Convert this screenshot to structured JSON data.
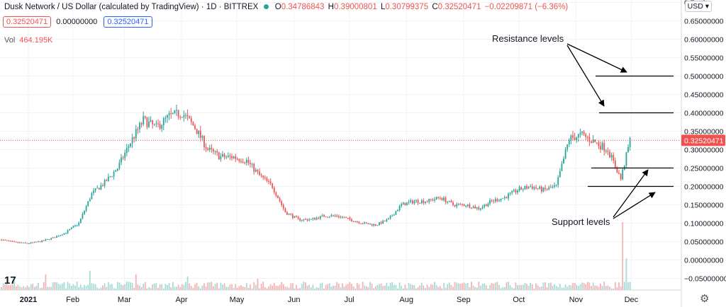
{
  "header": {
    "symbol_title": "Dusk Network / US Dollar (calculated by TradingView) · 1D · BITTREX",
    "ohlc": {
      "O": "0.34786843",
      "H": "0.39000801",
      "L": "0.30799375",
      "C": "0.32520471",
      "change": "−0.02209871 (−6.36%)"
    },
    "boxes": [
      "0.32520471",
      "0.00000000",
      "0.32520471"
    ],
    "volume_label": "Vol",
    "volume_value": "464.195K",
    "currency": "USD"
  },
  "branding": {
    "logo_text": "17",
    "settings_icon": "gear-icon"
  },
  "annotations": {
    "resistance": "Resistance levels",
    "support": "Support levels"
  },
  "colors": {
    "up": "#26a69a",
    "down": "#ef5350",
    "price_line": "#ef5350",
    "level_line": "#000000",
    "grid": "#f0f3fa"
  },
  "chart_data": {
    "type": "candlestick",
    "title": "Dusk Network / US Dollar (calculated by TradingView) · 1D · BITTREX",
    "ylim": [
      -0.07,
      0.7
    ],
    "y_ticks": [
      "0.7…0",
      "0.65000000",
      "0.60000000",
      "0.55000000",
      "0.50000000",
      "0.45000000",
      "0.40000000",
      "0.35000000",
      "0.30000000",
      "0.25000000",
      "0.20000000",
      "0.15000000",
      "0.10000000",
      "0.05000000",
      "0.00000000",
      "−0.05000000"
    ],
    "x_ticks": [
      "2021",
      "Feb",
      "Mar",
      "Apr",
      "May",
      "Jun",
      "Jul",
      "Aug",
      "Sep",
      "Oct",
      "Nov",
      "Dec"
    ],
    "last_price_label": "0.32520471",
    "last_price": 0.3252,
    "resistance_levels": [
      0.5,
      0.4
    ],
    "support_levels": [
      0.25,
      0.2
    ],
    "grid": true,
    "weekly_closes": {
      "x": [
        "2021-01-01",
        "2021-01-08",
        "2021-01-15",
        "2021-01-22",
        "2021-01-29",
        "2021-02-05",
        "2021-02-12",
        "2021-02-19",
        "2021-02-26",
        "2021-03-05",
        "2021-03-12",
        "2021-03-19",
        "2021-03-26",
        "2021-04-02",
        "2021-04-09",
        "2021-04-16",
        "2021-04-23",
        "2021-04-30",
        "2021-05-07",
        "2021-05-14",
        "2021-05-21",
        "2021-05-28",
        "2021-06-04",
        "2021-06-11",
        "2021-06-18",
        "2021-06-25",
        "2021-07-02",
        "2021-07-09",
        "2021-07-16",
        "2021-07-23",
        "2021-07-30",
        "2021-08-06",
        "2021-08-13",
        "2021-08-20",
        "2021-08-27",
        "2021-09-03",
        "2021-09-10",
        "2021-09-17",
        "2021-09-24",
        "2021-10-01",
        "2021-10-08",
        "2021-10-15",
        "2021-10-22",
        "2021-10-29",
        "2021-11-05",
        "2021-11-12",
        "2021-11-19",
        "2021-11-26",
        "2021-12-03",
        "2021-12-08"
      ],
      "close": [
        0.055,
        0.048,
        0.045,
        0.05,
        0.06,
        0.075,
        0.1,
        0.18,
        0.21,
        0.25,
        0.32,
        0.38,
        0.36,
        0.39,
        0.4,
        0.36,
        0.3,
        0.28,
        0.28,
        0.27,
        0.23,
        0.2,
        0.13,
        0.11,
        0.11,
        0.12,
        0.12,
        0.11,
        0.1,
        0.095,
        0.11,
        0.15,
        0.16,
        0.16,
        0.17,
        0.15,
        0.15,
        0.14,
        0.16,
        0.17,
        0.19,
        0.2,
        0.19,
        0.2,
        0.33,
        0.34,
        0.32,
        0.3,
        0.22,
        0.3252
      ]
    },
    "volume_bars": {
      "x": [
        "2021-01-08",
        "2021-01-25",
        "2021-02-18",
        "2021-03-15",
        "2021-04-12",
        "2021-05-20",
        "2021-08-01",
        "2021-12-04",
        "2021-12-06"
      ],
      "value": [
        0.12,
        0.14,
        0.17,
        0.14,
        0.12,
        0.1,
        0.07,
        0.6,
        0.28
      ]
    }
  }
}
